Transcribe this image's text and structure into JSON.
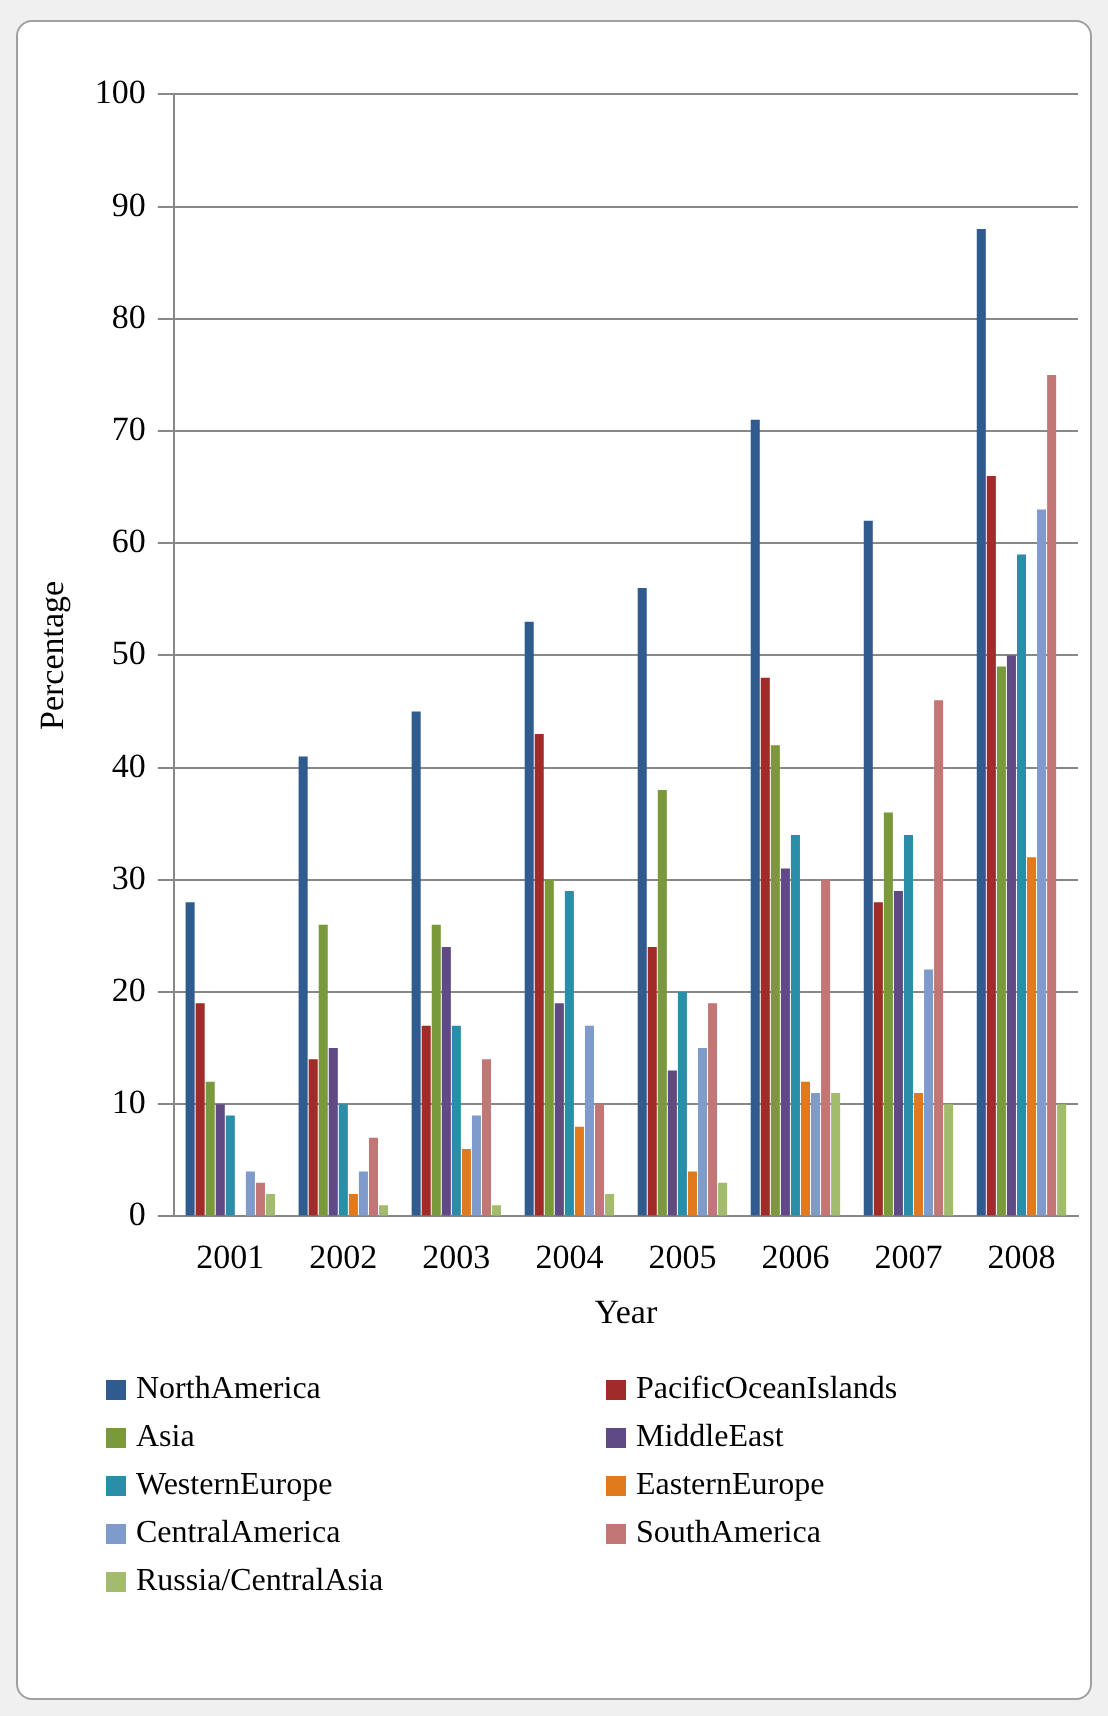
{
  "chart_data": {
    "type": "bar",
    "xlabel": "Year",
    "ylabel": "Percentage",
    "categories": [
      "2001",
      "2002",
      "2003",
      "2004",
      "2005",
      "2006",
      "2007",
      "2008"
    ],
    "ylim": [
      0,
      100
    ],
    "yticks": [
      0,
      10,
      20,
      30,
      40,
      50,
      60,
      70,
      80,
      90,
      100
    ],
    "grid": "y",
    "legend": "bottom",
    "series": [
      {
        "name": "NorthAmerica",
        "color": "#2f5b8f",
        "values": [
          28,
          41,
          45,
          53,
          56,
          71,
          62,
          88
        ]
      },
      {
        "name": "PacificOceanIslands",
        "color": "#a02b28",
        "values": [
          19,
          14,
          17,
          43,
          24,
          48,
          28,
          66
        ]
      },
      {
        "name": "Asia",
        "color": "#7a993b",
        "values": [
          12,
          26,
          26,
          30,
          38,
          42,
          36,
          49
        ]
      },
      {
        "name": "MiddleEast",
        "color": "#5f4a86",
        "values": [
          10,
          15,
          24,
          19,
          13,
          31,
          29,
          50
        ]
      },
      {
        "name": "WesternEurope",
        "color": "#2a8ea8",
        "values": [
          9,
          10,
          17,
          29,
          20,
          34,
          34,
          59
        ]
      },
      {
        "name": "EasternEurope",
        "color": "#e07a1c",
        "values": [
          0,
          2,
          6,
          8,
          4,
          12,
          11,
          32
        ]
      },
      {
        "name": "CentralAmerica",
        "color": "#7e9bcc",
        "values": [
          4,
          4,
          9,
          17,
          15,
          11,
          22,
          63
        ]
      },
      {
        "name": "SouthAmerica",
        "color": "#c27676",
        "values": [
          3,
          7,
          14,
          10,
          19,
          30,
          46,
          75
        ]
      },
      {
        "name": "Russia/CentralAsia",
        "color": "#a2bb6c",
        "values": [
          2,
          1,
          1,
          2,
          3,
          11,
          10,
          10
        ]
      }
    ]
  }
}
